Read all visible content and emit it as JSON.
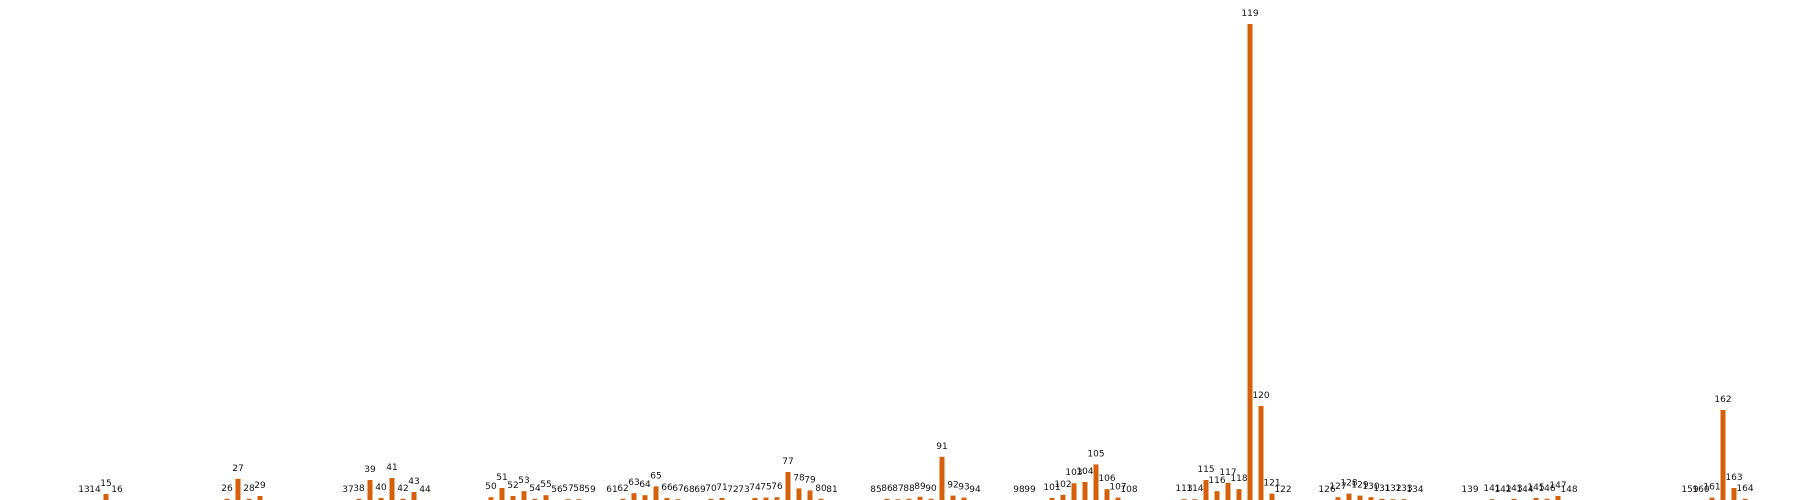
{
  "chart_data": {
    "type": "bar",
    "title": "",
    "xlabel": "",
    "ylabel": "",
    "bar_color": "#d4600c",
    "ylim": [
      0,
      119
    ],
    "grid": false,
    "legend": "none",
    "categories": [
      "13",
      "14",
      "15",
      "16",
      "26",
      "27",
      "28",
      "29",
      "37",
      "38",
      "39",
      "40",
      "41",
      "42",
      "43",
      "44",
      "50",
      "51",
      "52",
      "53",
      "54",
      "55",
      "56",
      "57",
      "58",
      "59",
      "61",
      "62",
      "63",
      "64",
      "65",
      "66",
      "67",
      "68",
      "69",
      "70",
      "71",
      "72",
      "73",
      "74",
      "75",
      "76",
      "77",
      "78",
      "79",
      "80",
      "81",
      "85",
      "86",
      "87",
      "88",
      "89",
      "90",
      "91",
      "92",
      "93",
      "94",
      "98",
      "99",
      "101",
      "102",
      "103",
      "104",
      "105",
      "106",
      "107",
      "108",
      "113",
      "114",
      "115",
      "116",
      "117",
      "118",
      "119",
      "120",
      "121",
      "122",
      "126",
      "127",
      "128",
      "129",
      "130",
      "131",
      "132",
      "133",
      "134",
      "139",
      "141",
      "142",
      "143",
      "144",
      "145",
      "146",
      "147",
      "148",
      "159",
      "160",
      "161",
      "162",
      "163",
      "164"
    ],
    "x": [
      13,
      14,
      15,
      16,
      26,
      27,
      28,
      29,
      37,
      38,
      39,
      40,
      41,
      42,
      43,
      44,
      50,
      51,
      52,
      53,
      54,
      55,
      56,
      57,
      58,
      59,
      61,
      62,
      63,
      64,
      65,
      66,
      67,
      68,
      69,
      70,
      71,
      72,
      73,
      74,
      75,
      76,
      77,
      78,
      79,
      80,
      81,
      85,
      86,
      87,
      88,
      89,
      90,
      91,
      92,
      93,
      94,
      98,
      99,
      101,
      102,
      103,
      104,
      105,
      106,
      107,
      108,
      113,
      114,
      115,
      116,
      117,
      118,
      119,
      120,
      121,
      122,
      126,
      127,
      128,
      129,
      130,
      131,
      132,
      133,
      134,
      139,
      141,
      142,
      143,
      144,
      145,
      146,
      147,
      148,
      159,
      160,
      161,
      162,
      163,
      164
    ],
    "values": [
      0,
      0,
      1.5,
      0,
      0.3,
      5.3,
      0.3,
      1,
      0,
      0.3,
      5,
      0.5,
      5.5,
      0.3,
      2,
      0,
      0.7,
      3,
      1,
      2.2,
      0.3,
      1.2,
      0,
      0.2,
      0.2,
      0,
      0,
      0.3,
      1.7,
      1.2,
      3.4,
      0.5,
      0.2,
      0,
      0,
      0.3,
      0.5,
      0,
      0,
      0.5,
      0.6,
      0.7,
      7,
      2.9,
      2.4,
      0.3,
      0,
      0,
      0.3,
      0.2,
      0.3,
      0.8,
      0.3,
      10.8,
      1.1,
      0.6,
      0,
      0,
      0,
      0.5,
      1.3,
      4.2,
      4.5,
      8.9,
      2.7,
      0.6,
      0,
      0.2,
      0.2,
      5,
      2.2,
      4.3,
      2.7,
      119,
      23.5,
      1.6,
      0,
      0,
      0.7,
      1.6,
      1.1,
      0.7,
      0.3,
      0.2,
      0.2,
      0,
      0,
      0.2,
      0,
      0.3,
      0,
      0.5,
      0.3,
      1,
      0,
      0,
      0,
      0.6,
      22.5,
      3,
      0.3
    ]
  }
}
